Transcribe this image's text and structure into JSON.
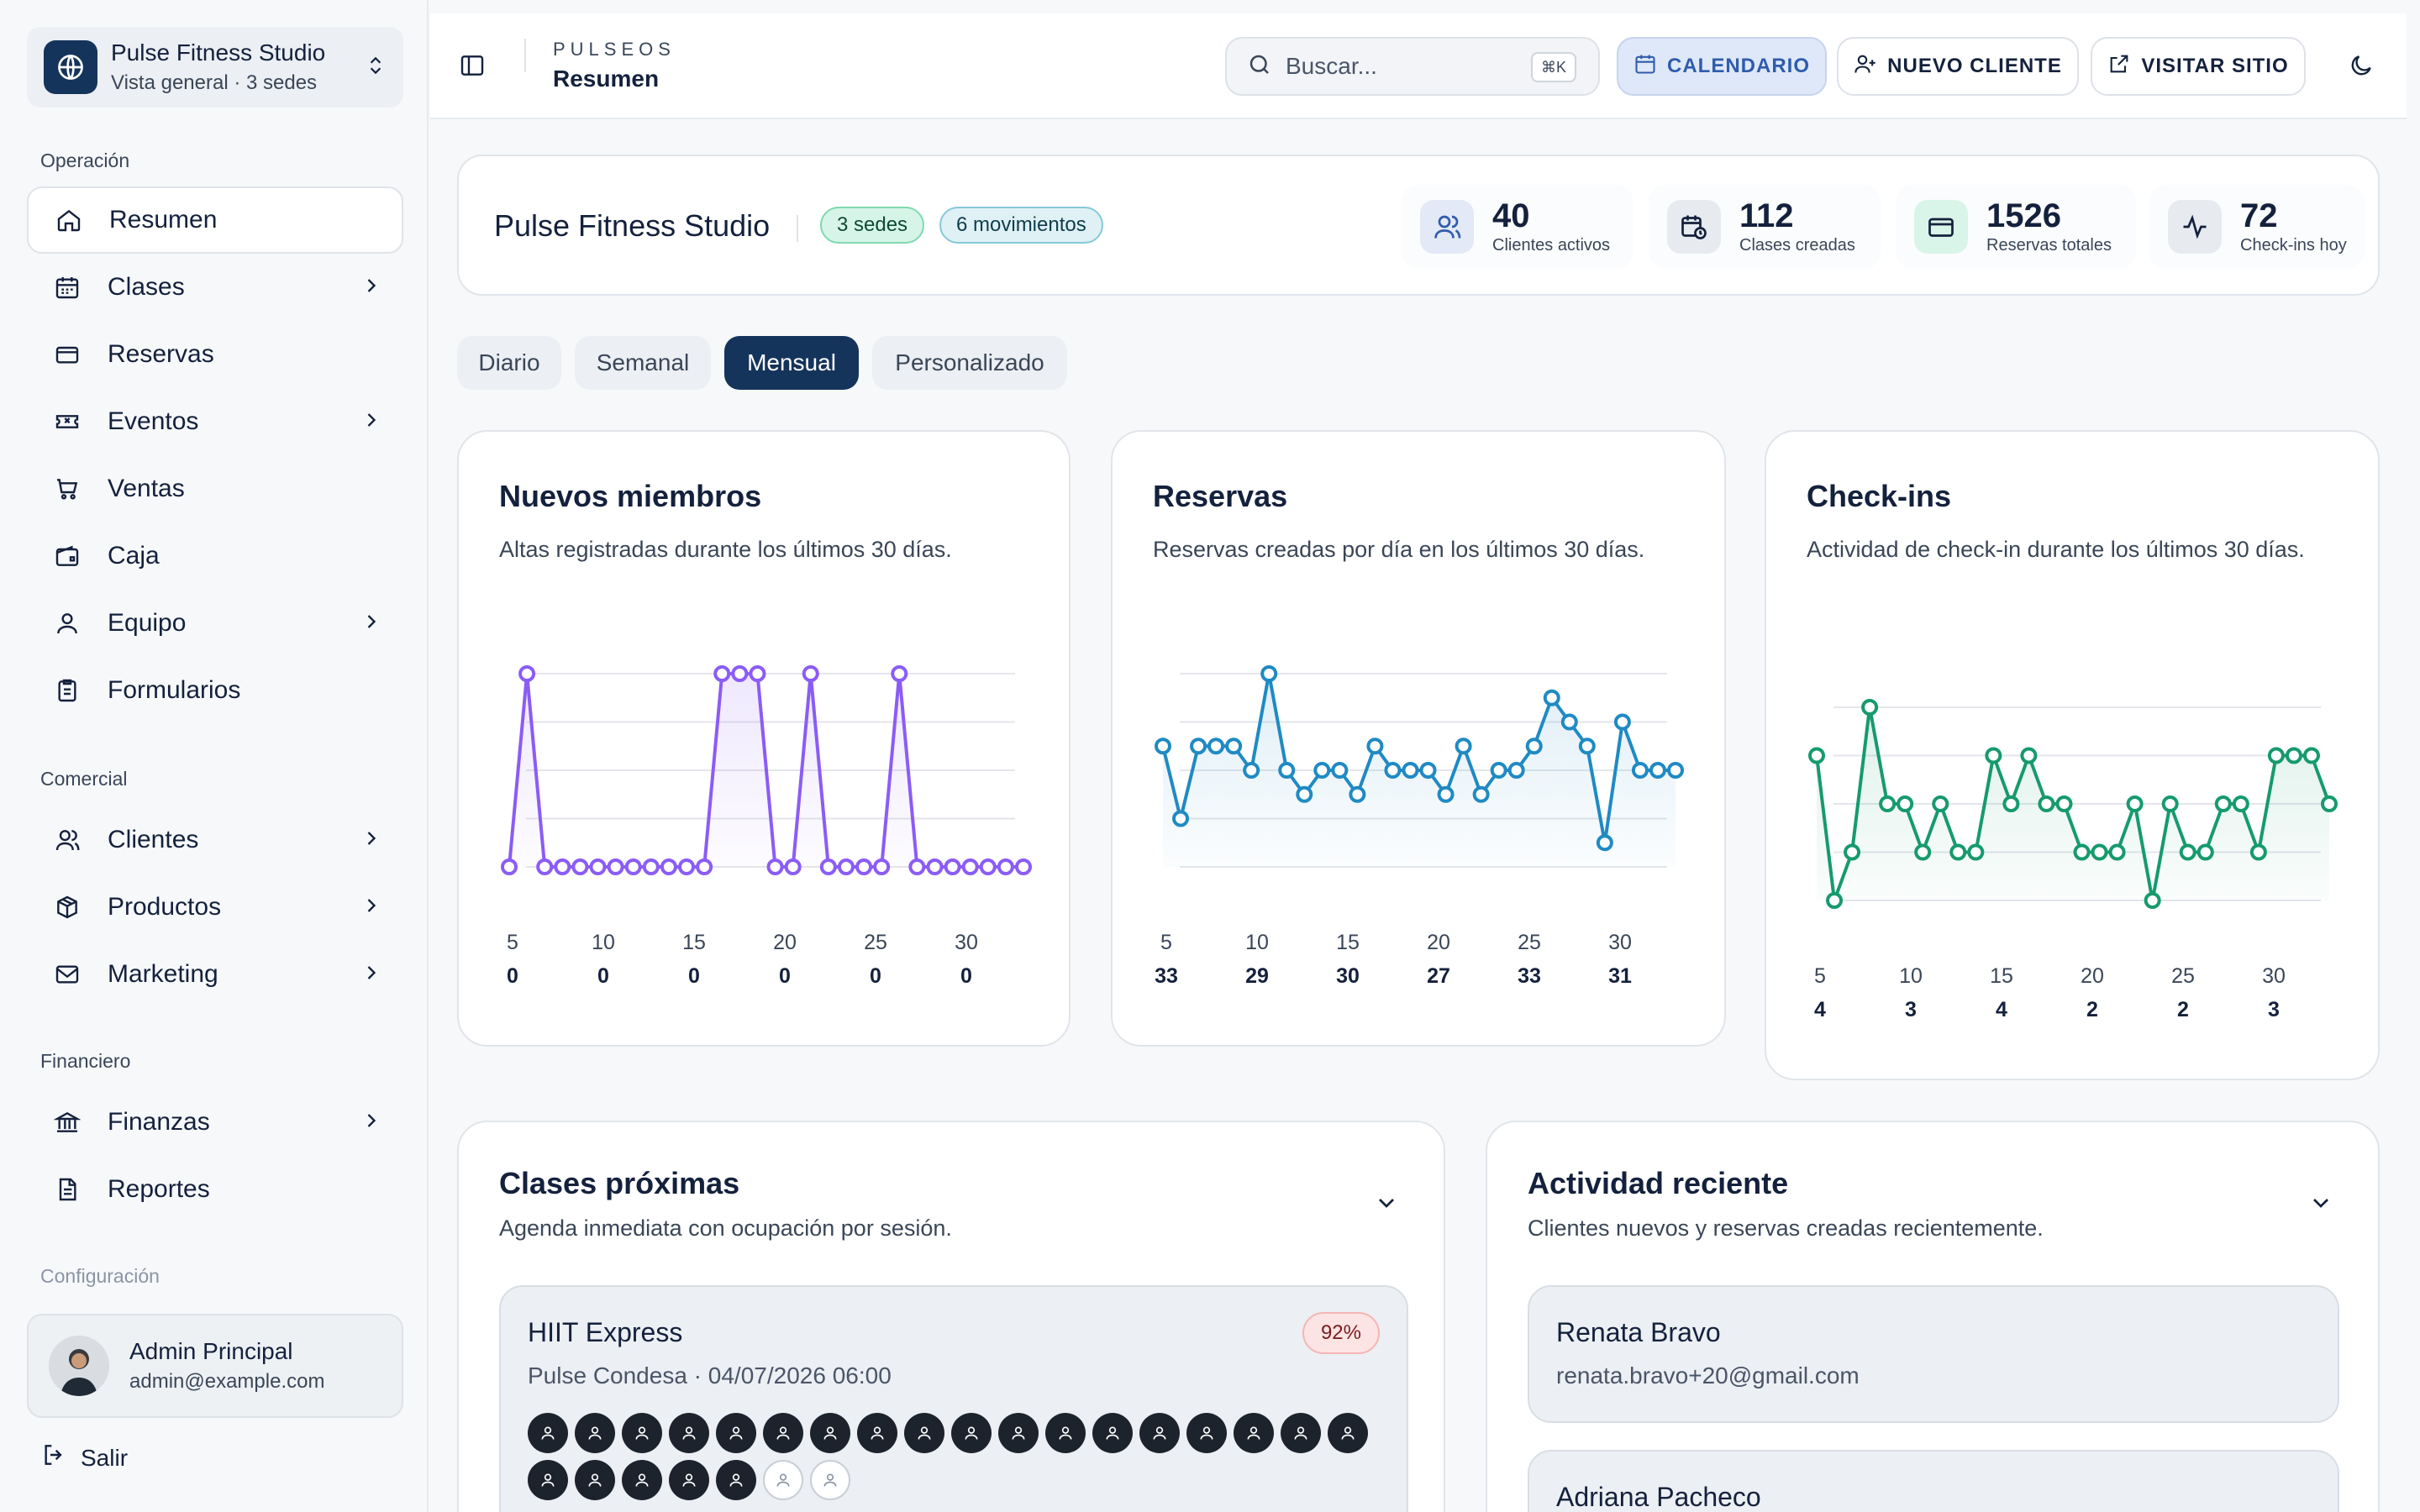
{
  "sidebar": {
    "brand_name": "Pulse Fitness Studio",
    "brand_sub": "Vista general · 3 sedes",
    "sections": {
      "operacion": "Operación",
      "comercial": "Comercial",
      "financiero": "Financiero",
      "configuracion": "Configuración"
    },
    "items": {
      "resumen": "Resumen",
      "clases": "Clases",
      "reservas": "Reservas",
      "eventos": "Eventos",
      "ventas": "Ventas",
      "caja": "Caja",
      "equipo": "Equipo",
      "formularios": "Formularios",
      "clientes": "Clientes",
      "productos": "Productos",
      "marketing": "Marketing",
      "finanzas": "Finanzas",
      "reportes": "Reportes"
    },
    "user": {
      "name": "Admin Principal",
      "email": "admin@example.com"
    },
    "logout": "Salir"
  },
  "topbar": {
    "brand": "PULSEOS",
    "title": "Resumen",
    "search_placeholder": "Buscar...",
    "shortcut": "⌘K",
    "calendar": "CALENDARIO",
    "new_client": "NUEVO CLIENTE",
    "visit_site": "VISITAR SITIO"
  },
  "summary": {
    "title": "Pulse Fitness Studio",
    "badge_sedes": "3 sedes",
    "badge_mov": "6 movimientos",
    "stats": [
      {
        "value": "40",
        "label": "Clientes activos"
      },
      {
        "value": "112",
        "label": "Clases creadas"
      },
      {
        "value": "1526",
        "label": "Reservas totales"
      },
      {
        "value": "72",
        "label": "Check-ins hoy"
      }
    ]
  },
  "tabs": [
    "Diario",
    "Semanal",
    "Mensual",
    "Personalizado"
  ],
  "active_tab": "Mensual",
  "charts": {
    "nuevos": {
      "title": "Nuevos miembros",
      "subtitle": "Altas registradas durante los últimos 30 días.",
      "x_ticks": [
        "5",
        "10",
        "15",
        "20",
        "25",
        "30"
      ],
      "x_values": [
        "0",
        "0",
        "0",
        "0",
        "0",
        "0"
      ]
    },
    "reservas": {
      "title": "Reservas",
      "subtitle": "Reservas creadas por día en los últimos 30 días.",
      "x_ticks": [
        "5",
        "10",
        "15",
        "20",
        "25",
        "30"
      ],
      "x_values": [
        "33",
        "29",
        "30",
        "27",
        "33",
        "31"
      ]
    },
    "checkins": {
      "title": "Check-ins",
      "subtitle": "Actividad de check-in durante los últimos 30 días.",
      "x_ticks": [
        "5",
        "10",
        "15",
        "20",
        "25",
        "30"
      ],
      "x_values": [
        "4",
        "3",
        "4",
        "2",
        "2",
        "3"
      ]
    }
  },
  "chart_data": [
    {
      "type": "line",
      "title": "Nuevos miembros",
      "color": "#8b5cf6",
      "x": [
        1,
        2,
        3,
        4,
        5,
        6,
        7,
        8,
        9,
        10,
        11,
        12,
        13,
        14,
        15,
        16,
        17,
        18,
        19,
        20,
        21,
        22,
        23,
        24,
        25,
        26,
        27,
        28,
        29,
        30
      ],
      "values": [
        0,
        1,
        0,
        0,
        0,
        0,
        0,
        0,
        0,
        0,
        0,
        0,
        1,
        1,
        1,
        0,
        0,
        1,
        0,
        0,
        0,
        0,
        1,
        0,
        0,
        0,
        0,
        0,
        0,
        0
      ],
      "ylim": [
        0,
        1
      ]
    },
    {
      "type": "line",
      "title": "Reservas",
      "color": "#1f8ac4",
      "x": [
        1,
        2,
        3,
        4,
        5,
        6,
        7,
        8,
        9,
        10,
        11,
        12,
        13,
        14,
        15,
        16,
        17,
        18,
        19,
        20,
        21,
        22,
        23,
        24,
        25,
        26,
        27,
        28,
        29,
        30
      ],
      "values": [
        31,
        28,
        31,
        31,
        31,
        30,
        34,
        30,
        29,
        30,
        30,
        29,
        31,
        30,
        30,
        30,
        29,
        31,
        29,
        30,
        30,
        31,
        33,
        32,
        31,
        27,
        32,
        30,
        30,
        30
      ],
      "ylim": [
        26,
        34
      ]
    },
    {
      "type": "line",
      "title": "Check-ins",
      "color": "#169a6e",
      "x": [
        1,
        2,
        3,
        4,
        5,
        6,
        7,
        8,
        9,
        10,
        11,
        12,
        13,
        14,
        15,
        16,
        17,
        18,
        19,
        20,
        21,
        22,
        23,
        24,
        25,
        26,
        27,
        28,
        29,
        30
      ],
      "values": [
        3,
        0,
        1,
        4,
        2,
        2,
        1,
        2,
        1,
        1,
        3,
        2,
        3,
        2,
        2,
        1,
        1,
        1,
        2,
        0,
        2,
        1,
        1,
        2,
        2,
        1,
        3,
        3,
        3,
        2
      ],
      "ylim": [
        0,
        4
      ]
    }
  ],
  "upcoming": {
    "title": "Clases próximas",
    "subtitle": "Agenda inmediata con ocupación por sesión.",
    "items": [
      {
        "name": "HIIT Express",
        "meta": "Pulse Condesa · 04/07/2026 06:00",
        "occupancy": "92%",
        "seats_full": 23,
        "seats_empty": 2
      }
    ]
  },
  "activity": {
    "title": "Actividad reciente",
    "subtitle": "Clientes nuevos y reservas creadas recientemente.",
    "items": [
      {
        "name": "Renata Bravo",
        "email": "renata.bravo+20@gmail.com"
      },
      {
        "name": "Adriana Pacheco",
        "email": ""
      }
    ]
  }
}
